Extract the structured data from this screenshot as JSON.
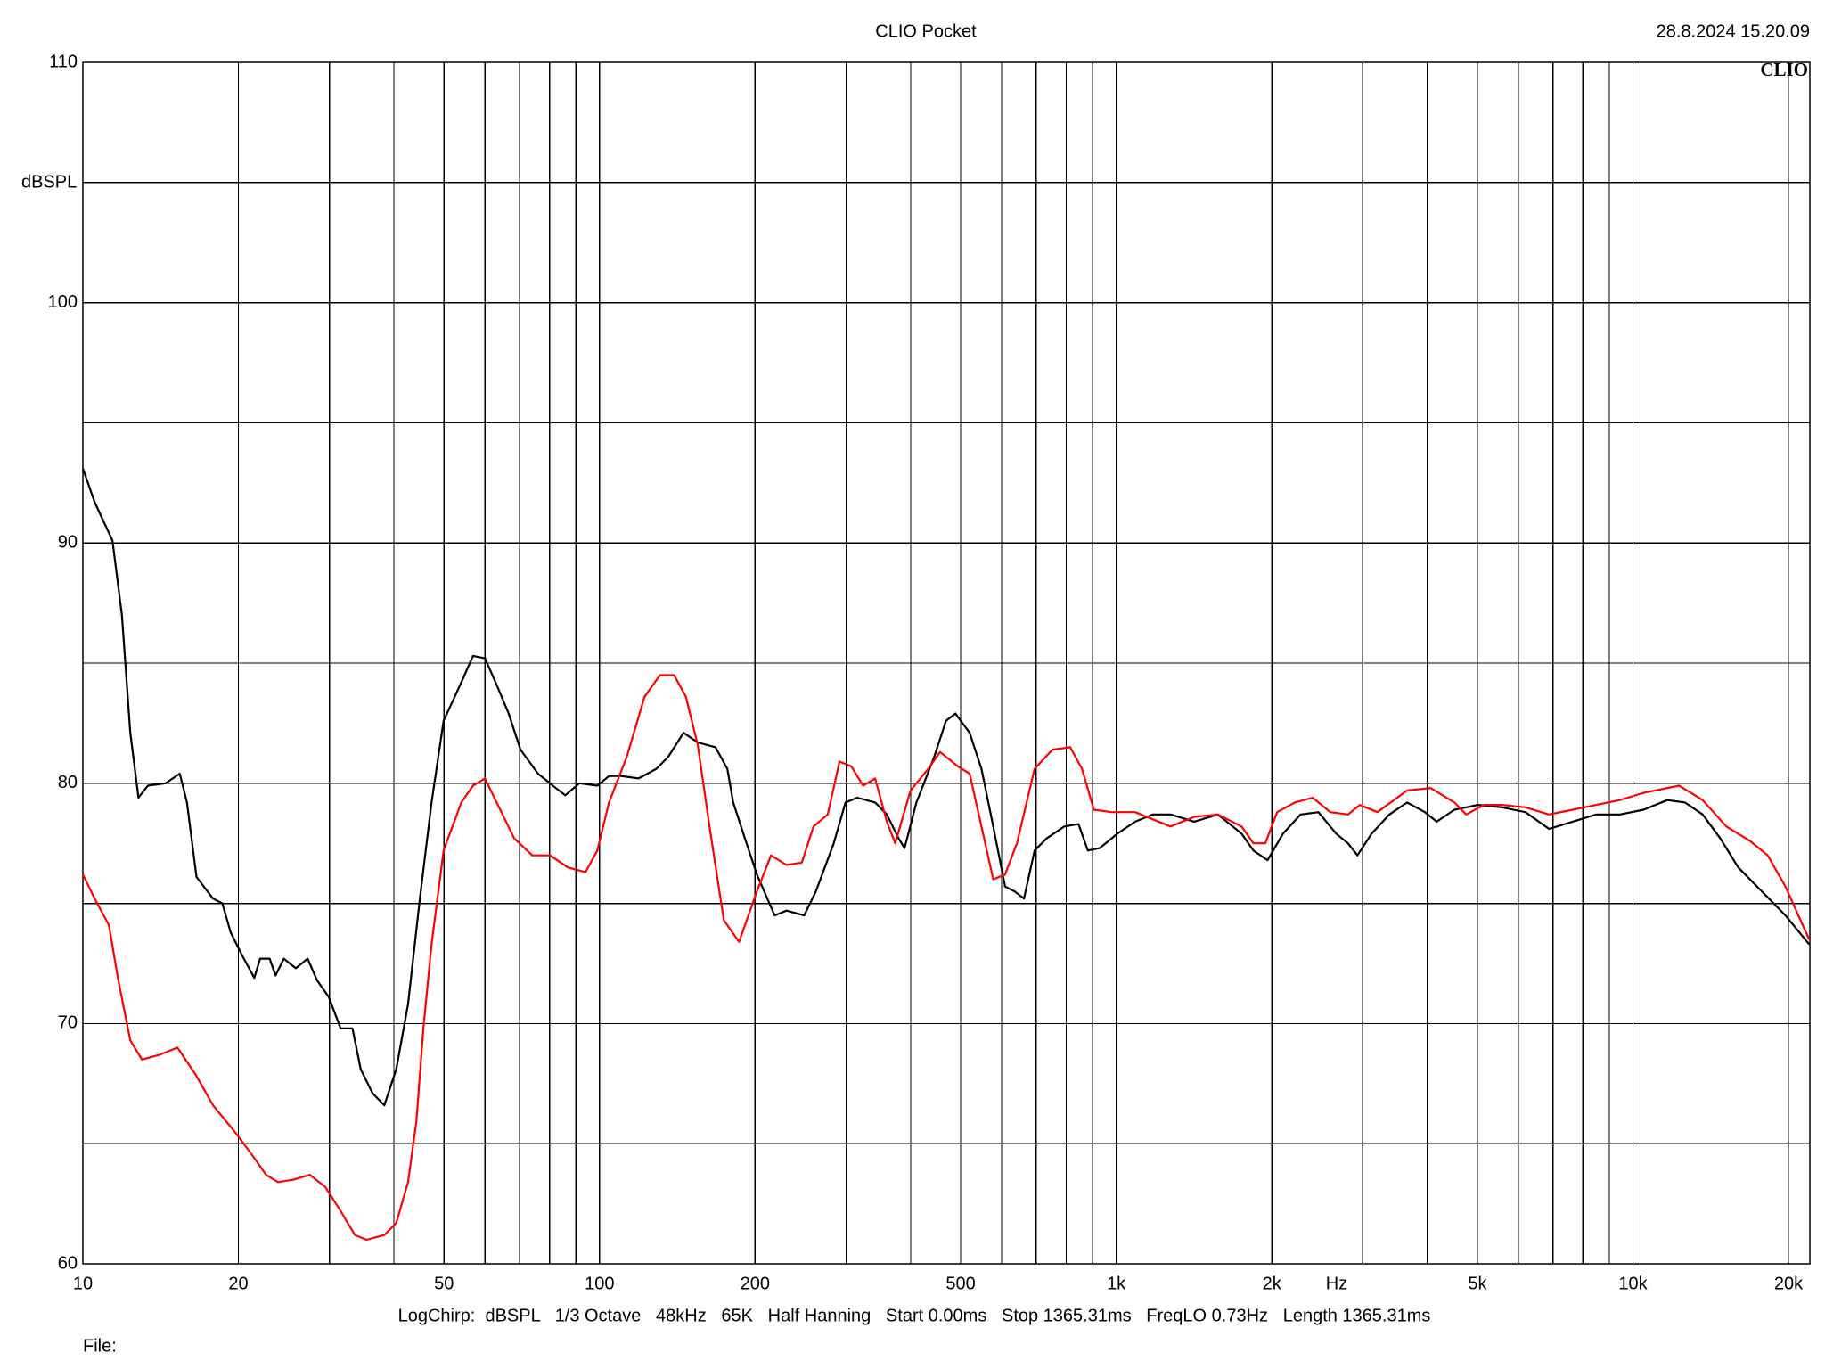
{
  "chart_data": {
    "type": "line",
    "title": "CLIO Pocket",
    "timestamp": "28.8.2024 15.20.09",
    "logo": "CLIO",
    "y_label": "dBSPL",
    "x_label": "Hz",
    "footer": "LogChirp:  dBSPL   1/3 Octave   48kHz   65K   Half Hanning   Start 0.00ms   Stop 1365.31ms   FreqLO 0.73Hz   Length 1365.31ms",
    "file_label": "File:",
    "xscale": "log",
    "grid": true,
    "xlim": [
      10,
      22000
    ],
    "ylim": [
      60,
      110
    ],
    "xticks": [
      10,
      20,
      50,
      100,
      200,
      500,
      {
        "value": 1000,
        "label": "1k"
      },
      {
        "value": 2000,
        "label": "2k"
      },
      {
        "value": 5000,
        "label": "5k"
      },
      {
        "value": 10000,
        "label": "10k"
      },
      {
        "value": 20000,
        "label": "20k"
      }
    ],
    "xminorticks": [
      30,
      40,
      60,
      70,
      80,
      90,
      300,
      400,
      600,
      700,
      800,
      900,
      3000,
      4000,
      6000,
      7000,
      8000,
      9000
    ],
    "yticks": [
      60,
      70,
      80,
      90,
      100,
      110
    ],
    "yminorticks": [
      65,
      75,
      85,
      95,
      105
    ],
    "series": [
      {
        "color": "#000000",
        "x": [
          10,
          10.54,
          11.41,
          11.9,
          12.35,
          12.81,
          13.36,
          14.46,
          15.4,
          15.9,
          16.59,
          17.86,
          18.62,
          19.32,
          20.37,
          21.47,
          22.03,
          22.99,
          23.6,
          24.49,
          25.82,
          27.22,
          28.39,
          29.92,
          31.54,
          33.25,
          34.5,
          36.37,
          38.33,
          40.41,
          42.6,
          44.9,
          47.3,
          49.9,
          54.0,
          56.9,
          60.0,
          63.2,
          66.7,
          70.3,
          76.0,
          82.3,
          85.8,
          91.4,
          99,
          104.3,
          110,
          119,
          128.8,
          135.8,
          145.4,
          154.9,
          167.6,
          176.7,
          181.4,
          191.2,
          201.6,
          218.2,
          230,
          248.9,
          262.3,
          283.9,
          299.2,
          315.4,
          341.5,
          359.7,
          379.2,
          389.4,
          410.5,
          444.3,
          468.3,
          488.5,
          520.3,
          548.5,
          578.1,
          609.4,
          635.6,
          662.9,
          695,
          732.8,
          793.3,
          845.3,
          881.4,
          929,
          1005,
          1088,
          1177,
          1274,
          1416,
          1573,
          1748,
          1843,
          1963,
          2102,
          2275,
          2462,
          2665,
          2809,
          2930,
          3121,
          3378,
          3655,
          3957,
          4171,
          4513,
          5013,
          5572,
          6192,
          6879,
          7643,
          8492,
          9437,
          10486,
          11652,
          12609,
          13646,
          14768,
          15988,
          17759,
          19730,
          21930
        ],
        "values": [
          93.1,
          91.7,
          90.1,
          87.0,
          82.1,
          79.4,
          79.9,
          80.0,
          80.4,
          79.2,
          76.1,
          75.2,
          75.0,
          73.8,
          72.8,
          71.9,
          72.7,
          72.7,
          72.0,
          72.7,
          72.3,
          72.7,
          71.8,
          71.1,
          69.8,
          69.8,
          68.1,
          67.1,
          66.6,
          68.1,
          70.8,
          75.2,
          79.2,
          82.6,
          84.2,
          85.3,
          85.2,
          84.1,
          82.9,
          81.4,
          80.4,
          79.8,
          79.5,
          80.0,
          79.9,
          80.3,
          80.3,
          80.2,
          80.6,
          81.1,
          82.1,
          81.7,
          81.5,
          80.6,
          79.2,
          77.7,
          76.2,
          74.5,
          74.7,
          74.5,
          75.5,
          77.5,
          79.2,
          79.4,
          79.2,
          78.7,
          77.7,
          77.3,
          79.2,
          81.1,
          82.6,
          82.9,
          82.1,
          80.6,
          78.2,
          75.7,
          75.5,
          75.2,
          77.2,
          77.7,
          78.2,
          78.3,
          77.2,
          77.3,
          77.9,
          78.4,
          78.7,
          78.7,
          78.4,
          78.7,
          77.9,
          77.2,
          76.8,
          77.9,
          78.7,
          78.8,
          77.9,
          77.5,
          77.0,
          77.9,
          78.7,
          79.2,
          78.8,
          78.4,
          78.9,
          79.1,
          79.0,
          78.8,
          78.1,
          78.4,
          78.7,
          78.7,
          78.9,
          79.3,
          79.2,
          78.7,
          77.7,
          76.5,
          75.5,
          74.5,
          73.3
        ]
      },
      {
        "color": "#ff0000",
        "x": [
          10,
          10.54,
          11.23,
          11.71,
          12.35,
          13.01,
          14.08,
          15.24,
          16.5,
          17.86,
          19.84,
          21.47,
          22.63,
          23.86,
          25.55,
          27.51,
          29.45,
          31.54,
          33.6,
          35.4,
          38.33,
          40.41,
          42.6,
          44.2,
          45.6,
          47.3,
          49.9,
          54.0,
          56.9,
          60.0,
          63.2,
          68.4,
          74.1,
          80.2,
          86.8,
          93.9,
          99,
          104.3,
          112.9,
          122.2,
          130.9,
          139.4,
          146.9,
          154.9,
          163.2,
          174,
          186.2,
          201.6,
          214.7,
          230,
          246.3,
          259.5,
          276.5,
          291.4,
          307.2,
          323.7,
          341.5,
          359.7,
          373.4,
          399.9,
          432.7,
          456.1,
          493.6,
          520.3,
          548.5,
          578.1,
          609.4,
          642.4,
          695,
          752.4,
          814.5,
          858.4,
          904.9,
          979,
          1088,
          1274,
          1416,
          1573,
          1748,
          1843,
          1943,
          2048,
          2216,
          2399,
          2596,
          2809,
          2961,
          3204,
          3655,
          4062,
          4513,
          4756,
          5148,
          5572,
          6192,
          6879,
          7643,
          8492,
          9437,
          10486,
          12281,
          13646,
          15162,
          16849,
          18235,
          19730,
          21930
        ],
        "values": [
          76.2,
          75.2,
          74.1,
          71.8,
          69.3,
          68.5,
          68.7,
          69.0,
          67.9,
          66.6,
          65.4,
          64.4,
          63.7,
          63.4,
          63.5,
          63.7,
          63.2,
          62.2,
          61.2,
          61.0,
          61.2,
          61.7,
          63.4,
          65.9,
          69.8,
          73.3,
          77.2,
          79.2,
          79.9,
          80.2,
          79.2,
          77.7,
          77.0,
          77.0,
          76.5,
          76.3,
          77.2,
          79.2,
          81.1,
          83.6,
          84.5,
          84.5,
          83.6,
          81.6,
          78.2,
          74.3,
          73.4,
          75.5,
          77.0,
          76.6,
          76.7,
          78.2,
          78.7,
          80.9,
          80.7,
          79.9,
          80.2,
          78.4,
          77.5,
          79.7,
          80.6,
          81.3,
          80.7,
          80.4,
          78.2,
          76.0,
          76.2,
          77.5,
          80.6,
          81.4,
          81.5,
          80.6,
          78.9,
          78.8,
          78.8,
          78.2,
          78.6,
          78.7,
          78.2,
          77.5,
          77.5,
          78.8,
          79.2,
          79.4,
          78.8,
          78.7,
          79.1,
          78.8,
          79.7,
          79.8,
          79.2,
          78.7,
          79.1,
          79.1,
          79.0,
          78.7,
          78.9,
          79.1,
          79.3,
          79.6,
          79.9,
          79.3,
          78.2,
          77.6,
          77.0,
          75.7,
          73.5
        ]
      }
    ]
  }
}
